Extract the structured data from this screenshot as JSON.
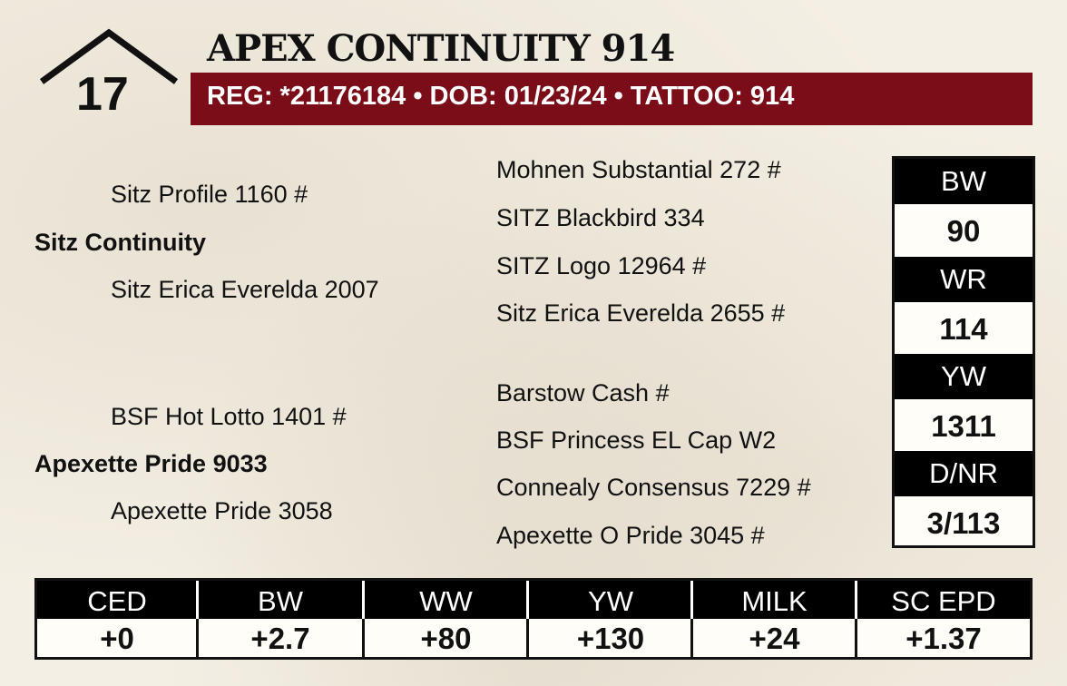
{
  "lot": {
    "number": "17"
  },
  "title": "APEX CONTINUITY 914",
  "reg_line": "REG: *21176184 • DOB: 01/23/24 • TATTOO: 914",
  "colors": {
    "accent": "#7a0d17",
    "header_bg": "#000000",
    "paper": "#f4efe4"
  },
  "pedigree": {
    "sire": "Sitz Continuity",
    "sire_sire": "Sitz Profile 1160 #",
    "sire_dam": "Sitz Erica Everelda 2007",
    "sire_sire_sire": "Mohnen Substantial 272 #",
    "sire_sire_dam": "SITZ Blackbird 334",
    "sire_dam_sire": "SITZ Logo 12964 #",
    "sire_dam_dam": "Sitz Erica Everelda 2655 #",
    "dam": "Apexette Pride 9033",
    "dam_sire": "BSF Hot Lotto 1401 #",
    "dam_dam": "Apexette Pride 3058",
    "dam_sire_sire": "Barstow Cash #",
    "dam_sire_dam": "BSF Princess EL Cap W2",
    "dam_dam_sire": "Connealy Consensus 7229 #",
    "dam_dam_dam": "Apexette O Pride 3045 #"
  },
  "actuals": {
    "bw_label": "BW",
    "bw_value": "90",
    "wr_label": "WR",
    "wr_value": "114",
    "yw_label": "YW",
    "yw_value": "1311",
    "dnr_label": "D/NR",
    "dnr_value": "3/113"
  },
  "epds": {
    "ced_label": "CED",
    "ced_value": "+0",
    "bw_label": "BW",
    "bw_value": "+2.7",
    "ww_label": "WW",
    "ww_value": "+80",
    "yw_label": "YW",
    "yw_value": "+130",
    "milk_label": "MILK",
    "milk_value": "+24",
    "sc_label": "SC EPD",
    "sc_value": "+1.37"
  }
}
